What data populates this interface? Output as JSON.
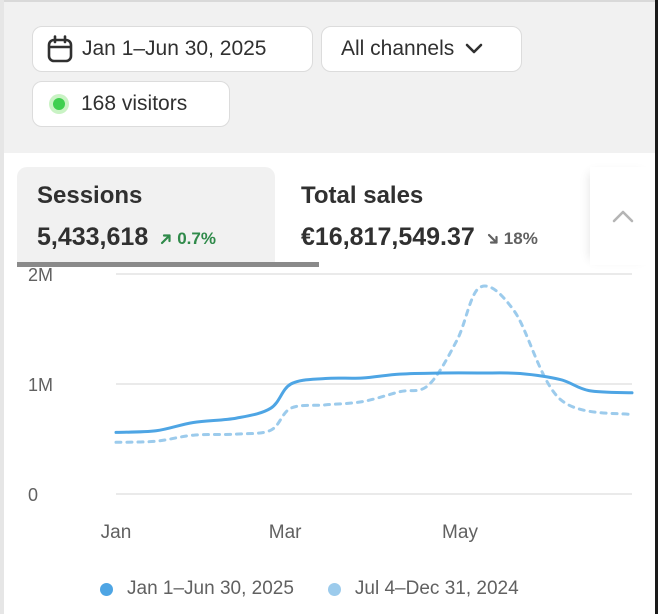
{
  "filters": {
    "date_range": "Jan 1–Jun 30, 2025",
    "channels": "All channels",
    "visitors": "168 visitors"
  },
  "metrics": [
    {
      "title": "Sessions",
      "value": "5,433,618",
      "delta": "0.7%",
      "direction": "up",
      "selected": true
    },
    {
      "title": "Total sales",
      "value": "€16,817,549.37",
      "delta": "18%",
      "direction": "down",
      "selected": false
    }
  ],
  "icons": {
    "date": "calendar-icon",
    "channels": "chevron-down-icon",
    "visitors": "live-dot-icon",
    "up": "arrow-up-right-icon",
    "down": "arrow-down-right-icon",
    "collapse": "chevron-up-icon"
  },
  "colors": {
    "current_series": "#4ea5e4",
    "previous_series": "#9ccbec",
    "delta_up": "#2f8a4a",
    "delta_down": "#616161",
    "live_dot": "#3fcf4f"
  },
  "chart_data": {
    "type": "line",
    "y_ticks": [
      "0",
      "1M",
      "2M"
    ],
    "y_tick_values": [
      0,
      1000000,
      2000000
    ],
    "ylim": [
      0,
      2000000
    ],
    "x_ticks": [
      "Jan",
      "Mar",
      "May"
    ],
    "x_tick_values": [
      "2025-01-01",
      "2025-03-01",
      "2025-05-01"
    ],
    "xlim": [
      "2025-01-01",
      "2025-06-30"
    ],
    "grid": true,
    "legend": "bottom",
    "series": [
      {
        "name": "Jan 1–Jun 30, 2025",
        "style": "solid",
        "points": [
          [
            "2025-01-01",
            560000
          ],
          [
            "2025-01-15",
            575000
          ],
          [
            "2025-01-28",
            650000
          ],
          [
            "2025-02-12",
            690000
          ],
          [
            "2025-02-24",
            780000
          ],
          [
            "2025-03-03",
            1000000
          ],
          [
            "2025-03-15",
            1050000
          ],
          [
            "2025-03-28",
            1055000
          ],
          [
            "2025-04-10",
            1090000
          ],
          [
            "2025-04-25",
            1100000
          ],
          [
            "2025-05-08",
            1100000
          ],
          [
            "2025-05-22",
            1095000
          ],
          [
            "2025-06-05",
            1040000
          ],
          [
            "2025-06-15",
            940000
          ],
          [
            "2025-06-30",
            920000
          ]
        ]
      },
      {
        "name": "Jul 4–Dec 31, 2024",
        "style": "dashed",
        "points": [
          [
            "2025-01-01",
            470000
          ],
          [
            "2025-01-15",
            480000
          ],
          [
            "2025-01-28",
            535000
          ],
          [
            "2025-02-12",
            545000
          ],
          [
            "2025-02-24",
            580000
          ],
          [
            "2025-03-03",
            780000
          ],
          [
            "2025-03-15",
            810000
          ],
          [
            "2025-03-28",
            840000
          ],
          [
            "2025-04-10",
            930000
          ],
          [
            "2025-04-20",
            990000
          ],
          [
            "2025-04-30",
            1400000
          ],
          [
            "2025-05-08",
            1880000
          ],
          [
            "2025-05-20",
            1660000
          ],
          [
            "2025-06-05",
            860000
          ],
          [
            "2025-06-30",
            720000
          ]
        ]
      }
    ]
  }
}
